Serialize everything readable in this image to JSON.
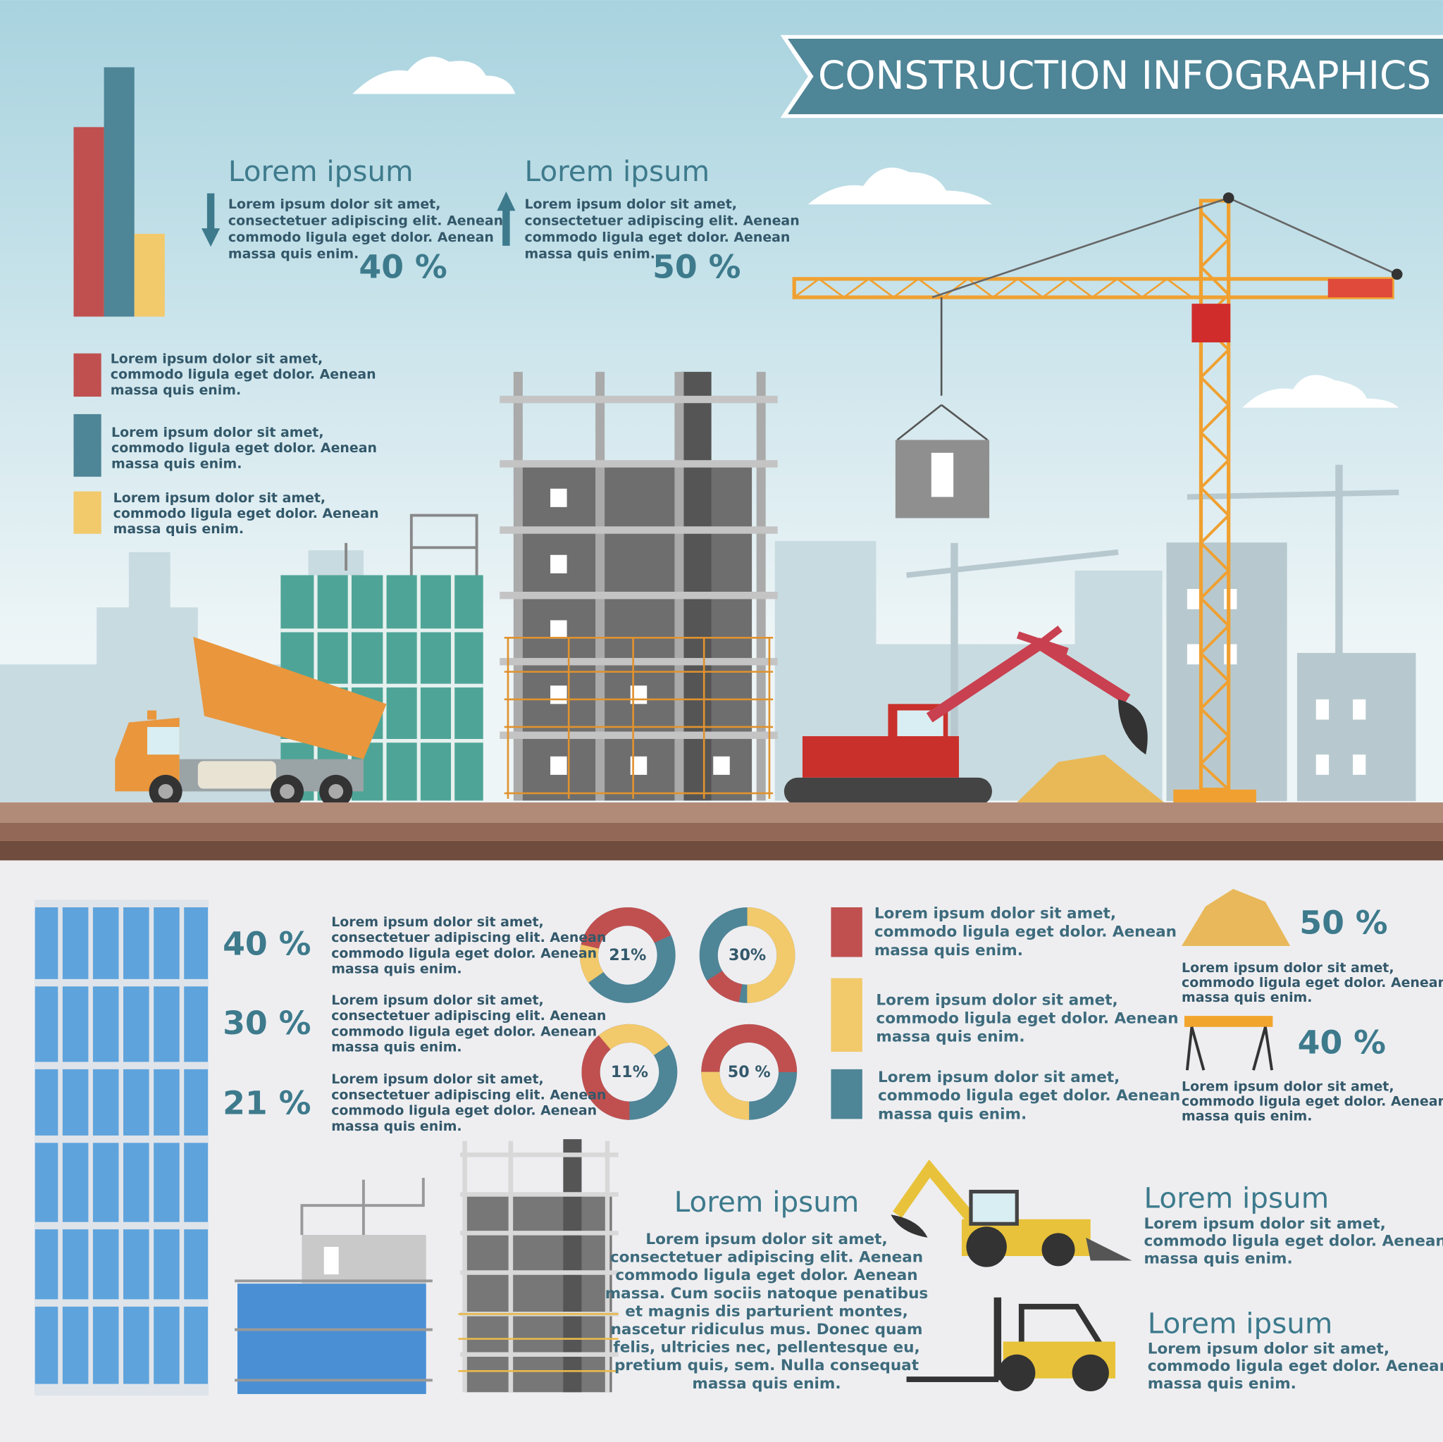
{
  "header": {
    "title": "CONSTRUCTION  INFOGRAPHICS"
  },
  "top_stats": [
    {
      "heading": "Lorem ipsum",
      "lines": [
        "Lorem ipsum dolor sit amet,",
        "consectetuer adipiscing elit. Aenean",
        "commodo ligula eget dolor. Aenean",
        "massa quis enim."
      ],
      "value": "40 %"
    },
    {
      "heading": "Lorem ipsum",
      "lines": [
        "Lorem ipsum dolor sit amet,",
        "consectetuer adipiscing elit. Aenean",
        "commodo ligula eget dolor. Aenean",
        "massa quis enim."
      ],
      "value": "50 %"
    }
  ],
  "top_legend": [
    {
      "lines": [
        "Lorem ipsum dolor sit amet,",
        "commodo ligula eget dolor. Aenean",
        "massa quis enim."
      ]
    },
    {
      "lines": [
        "Lorem ipsum dolor sit amet,",
        "commodo ligula eget dolor. Aenean",
        "massa quis enim."
      ]
    },
    {
      "lines": [
        "Lorem ipsum dolor sit amet,",
        "commodo ligula eget dolor. Aenean",
        "massa quis enim."
      ]
    }
  ],
  "building_stats": [
    {
      "value": "40 %",
      "lines": [
        "Lorem ipsum dolor sit amet,",
        "consectetuer adipiscing elit. Aenean",
        "commodo ligula eget dolor. Aenean",
        "massa quis enim."
      ]
    },
    {
      "value": "30 %",
      "lines": [
        "Lorem ipsum dolor sit amet,",
        "consectetuer adipiscing elit. Aenean",
        "commodo ligula eget dolor. Aenean",
        "massa quis enim."
      ]
    },
    {
      "value": "21 %",
      "lines": [
        "Lorem ipsum dolor sit amet,",
        "consectetuer adipiscing elit. Aenean",
        "commodo ligula eget dolor. Aenean",
        "massa quis enim."
      ]
    }
  ],
  "donuts": [
    {
      "label": "21%"
    },
    {
      "label": "30%"
    },
    {
      "label": "11%"
    },
    {
      "label": "50 %"
    }
  ],
  "mid_legend": [
    {
      "lines": [
        "Lorem ipsum dolor sit amet,",
        "commodo ligula eget dolor. Aenean",
        "massa quis enim."
      ]
    },
    {
      "lines": [
        "Lorem ipsum dolor sit amet,",
        "commodo ligula eget dolor. Aenean",
        "massa quis enim."
      ]
    },
    {
      "lines": [
        "Lorem ipsum dolor sit amet,",
        "commodo ligula eget dolor. Aenean",
        "massa quis enim."
      ]
    }
  ],
  "right_stats": [
    {
      "value": "50 %",
      "lines": [
        "Lorem ipsum dolor sit amet,",
        "commodo ligula eget dolor. Aenean",
        "massa quis enim."
      ]
    },
    {
      "value": "40 %",
      "lines": [
        "Lorem ipsum dolor sit amet,",
        "commodo ligula eget dolor. Aenean",
        "massa quis enim."
      ]
    }
  ],
  "bottom_text": {
    "heading": "Lorem ipsum",
    "lines": [
      "Lorem ipsum dolor sit amet,",
      "consectetuer adipiscing elit. Aenean",
      "commodo ligula eget dolor. Aenean",
      "massa. Cum sociis natoque penatibus",
      "et magnis dis parturient montes,",
      "nascetur ridiculus mus. Donec quam",
      "felis, ultricies nec, pellentesque eu,",
      "pretium quis, sem. Nulla consequat",
      "massa quis enim."
    ]
  },
  "machines": [
    {
      "heading": "Lorem ipsum",
      "lines": [
        "Lorem ipsum dolor sit amet,",
        "commodo ligula eget dolor. Aenean",
        "massa quis enim."
      ]
    },
    {
      "heading": "Lorem ipsum",
      "lines": [
        "Lorem ipsum dolor sit amet,",
        "commodo ligula eget dolor. Aenean",
        "massa quis enim."
      ]
    }
  ]
}
